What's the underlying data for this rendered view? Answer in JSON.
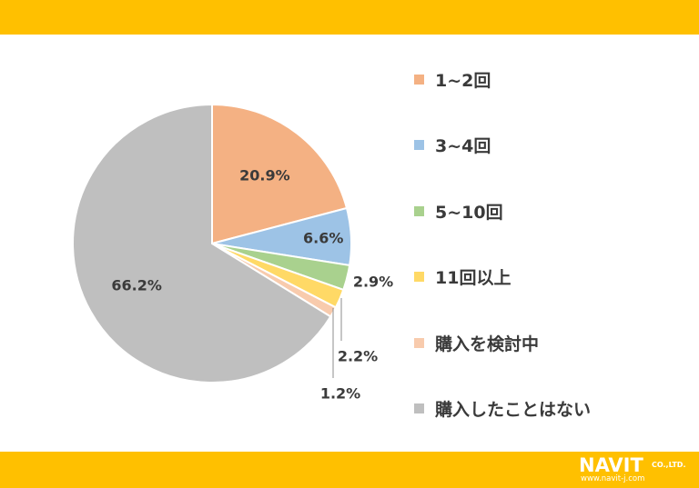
{
  "colors": {
    "band": "#ffc000",
    "background": "#ffffff",
    "text": "#3a3a3a"
  },
  "chart_data": {
    "type": "pie",
    "title": "",
    "start_angle_deg": 0,
    "direction": "clockwise",
    "legend_position": "right",
    "slices": [
      {
        "label": "1~2回",
        "value": 20.9,
        "display": "20.9%",
        "color": "#f4b183"
      },
      {
        "label": "3~4回",
        "value": 6.6,
        "display": "6.6%",
        "color": "#9dc3e6"
      },
      {
        "label": "5~10回",
        "value": 2.9,
        "display": "2.9%",
        "color": "#a9d18e"
      },
      {
        "label": "11回以上",
        "value": 2.2,
        "display": "2.2%",
        "color": "#ffd966"
      },
      {
        "label": "購入を検討中",
        "value": 1.2,
        "display": "1.2%",
        "color": "#f8cbad"
      },
      {
        "label": "購入したことはない",
        "value": 66.2,
        "display": "66.2%",
        "color": "#bfbfbf"
      }
    ]
  },
  "logo": {
    "name": "NAVIT",
    "company": "CO.,LTD.",
    "url": "www.navit-j.com"
  }
}
